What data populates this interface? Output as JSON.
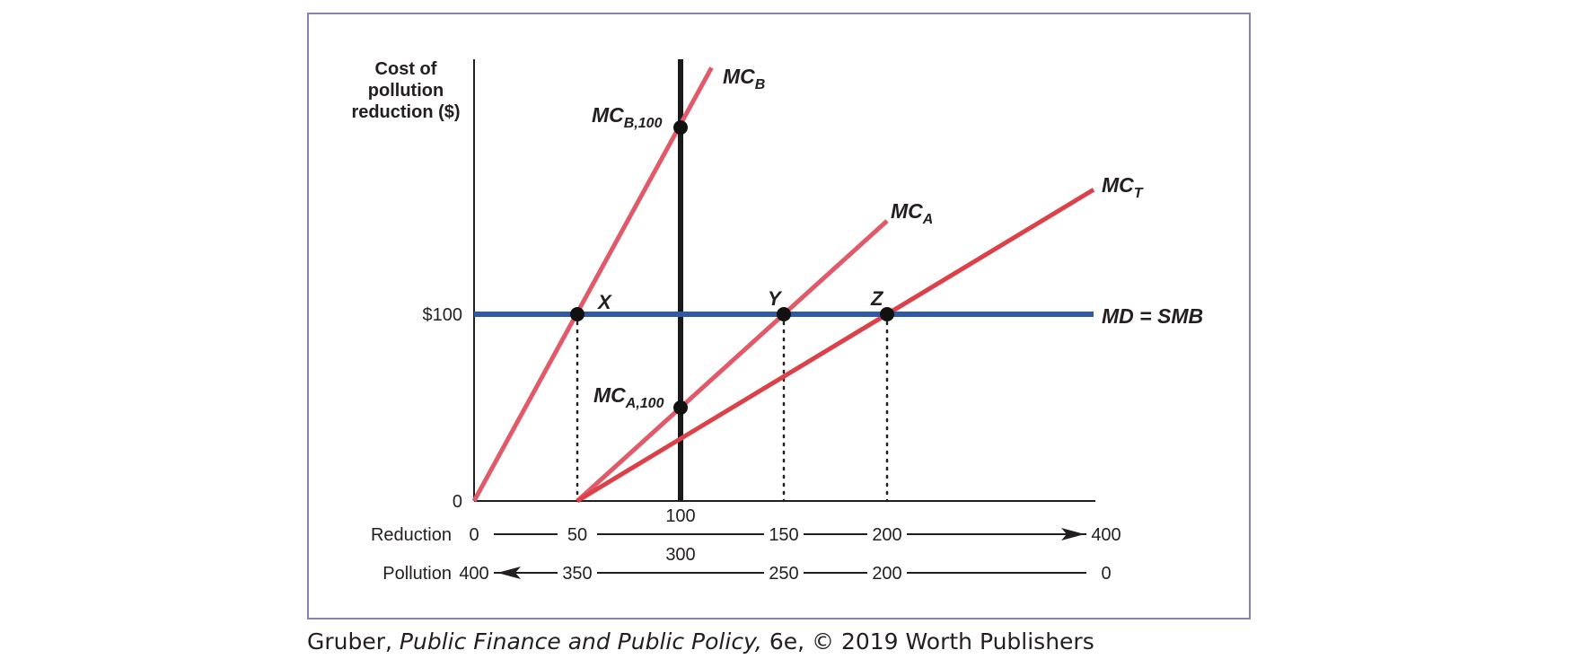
{
  "chart_data": {
    "type": "line",
    "ylabel_lines": [
      "Cost of",
      "pollution",
      "reduction ($)"
    ],
    "y_ticks": [
      {
        "label": "$100",
        "value": 100
      },
      {
        "label": "0",
        "value": 0
      }
    ],
    "ylim": [
      0,
      200
    ],
    "xlim": [
      0,
      250
    ],
    "reduction_axis": {
      "label": "Reduction",
      "ticks": [
        {
          "label": "0",
          "value": 0
        },
        {
          "label": "50",
          "value": 50
        },
        {
          "label": "100",
          "value": 100
        },
        {
          "label": "150",
          "value": 150
        },
        {
          "label": "200",
          "value": 200
        },
        {
          "label": "400",
          "value": 400
        }
      ]
    },
    "pollution_axis": {
      "label": "Pollution",
      "ticks": [
        {
          "label": "400",
          "value": 400
        },
        {
          "label": "350",
          "value": 350
        },
        {
          "label": "300",
          "value": 300
        },
        {
          "label": "250",
          "value": 250
        },
        {
          "label": "200",
          "value": 200
        },
        {
          "label": "0",
          "value": 0
        }
      ]
    },
    "series": [
      {
        "name": "MC",
        "sub": "B",
        "color": "#e05a6a",
        "points": [
          [
            0,
            0
          ],
          [
            115,
            232
          ]
        ]
      },
      {
        "name": "MC",
        "sub": "A",
        "color": "#e05a6a",
        "points": [
          [
            50,
            0
          ],
          [
            200,
            150
          ]
        ]
      },
      {
        "name": "MC",
        "sub": "T",
        "color": "#dc4149",
        "points": [
          [
            50,
            0
          ],
          [
            300,
            166.7
          ]
        ]
      },
      {
        "name": "MD = SMB",
        "sub": "",
        "color": "#2e5aa7",
        "points": [
          [
            0,
            100
          ],
          [
            300,
            100
          ]
        ]
      }
    ],
    "vertical_line": {
      "x": 100,
      "color": "#1a1a1a"
    },
    "points": [
      {
        "label": "X",
        "x": 50,
        "y": 100
      },
      {
        "label": "Y",
        "x": 150,
        "y": 100
      },
      {
        "label": "Z",
        "x": 200,
        "y": 100
      },
      {
        "label": "MC",
        "sub": "B,100",
        "x": 100,
        "y": 200
      },
      {
        "label": "MC",
        "sub": "A,100",
        "x": 100,
        "y": 50
      }
    ],
    "dotted_drops": [
      50,
      150,
      200
    ]
  },
  "caption": {
    "author": "Gruber, ",
    "title": "Public Finance and Public Policy,",
    "rest": " 6e, © 2019 Worth Publishers"
  }
}
